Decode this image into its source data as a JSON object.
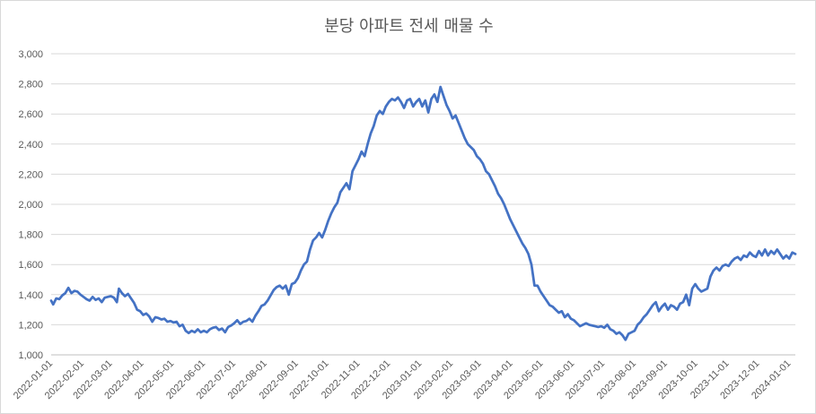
{
  "chart_data": {
    "type": "line",
    "title": "분당 아파트 전세 매물 수",
    "xlabel": "",
    "ylabel": "",
    "ylim": [
      1000,
      3000
    ],
    "y_ticks": [
      1000,
      1200,
      1400,
      1600,
      1800,
      2000,
      2200,
      2400,
      2600,
      2800,
      3000
    ],
    "y_tick_labels": [
      "1,000",
      "1,200",
      "1,400",
      "1,600",
      "1,800",
      "2,000",
      "2,200",
      "2,400",
      "2,600",
      "2,800",
      "3,000"
    ],
    "x_range": [
      "2022-01-01",
      "2024-01-07"
    ],
    "x_tick_labels": [
      "2022-01-01",
      "2022-02-01",
      "2022-03-01",
      "2022-04-01",
      "2022-05-01",
      "2022-06-01",
      "2022-07-01",
      "2022-08-01",
      "2022-09-01",
      "2022-10-01",
      "2022-11-01",
      "2022-12-01",
      "2023-01-01",
      "2023-02-01",
      "2023-03-01",
      "2023-04-01",
      "2023-05-01",
      "2023-06-01",
      "2023-07-01",
      "2023-08-01",
      "2023-09-01",
      "2023-10-01",
      "2023-11-01",
      "2023-12-01",
      "2024-01-01"
    ],
    "grid": true,
    "legend": "none",
    "series": [
      {
        "color": "#4472c4",
        "points": [
          [
            "2022-01-01",
            1360
          ],
          [
            "2022-01-03",
            1335
          ],
          [
            "2022-01-06",
            1375
          ],
          [
            "2022-01-09",
            1370
          ],
          [
            "2022-01-12",
            1395
          ],
          [
            "2022-01-15",
            1410
          ],
          [
            "2022-01-18",
            1445
          ],
          [
            "2022-01-21",
            1410
          ],
          [
            "2022-01-24",
            1425
          ],
          [
            "2022-01-27",
            1420
          ],
          [
            "2022-01-30",
            1400
          ],
          [
            "2022-02-02",
            1385
          ],
          [
            "2022-02-05",
            1370
          ],
          [
            "2022-02-08",
            1360
          ],
          [
            "2022-02-11",
            1385
          ],
          [
            "2022-02-14",
            1365
          ],
          [
            "2022-02-17",
            1375
          ],
          [
            "2022-02-20",
            1350
          ],
          [
            "2022-02-23",
            1380
          ],
          [
            "2022-02-26",
            1385
          ],
          [
            "2022-03-01",
            1390
          ],
          [
            "2022-03-04",
            1380
          ],
          [
            "2022-03-07",
            1350
          ],
          [
            "2022-03-09",
            1440
          ],
          [
            "2022-03-12",
            1410
          ],
          [
            "2022-03-15",
            1390
          ],
          [
            "2022-03-18",
            1405
          ],
          [
            "2022-03-21",
            1375
          ],
          [
            "2022-03-24",
            1345
          ],
          [
            "2022-03-27",
            1300
          ],
          [
            "2022-03-30",
            1290
          ],
          [
            "2022-04-02",
            1265
          ],
          [
            "2022-04-05",
            1275
          ],
          [
            "2022-04-08",
            1255
          ],
          [
            "2022-04-11",
            1220
          ],
          [
            "2022-04-14",
            1250
          ],
          [
            "2022-04-17",
            1245
          ],
          [
            "2022-04-20",
            1235
          ],
          [
            "2022-04-23",
            1240
          ],
          [
            "2022-04-26",
            1220
          ],
          [
            "2022-04-29",
            1225
          ],
          [
            "2022-05-02",
            1215
          ],
          [
            "2022-05-05",
            1220
          ],
          [
            "2022-05-08",
            1190
          ],
          [
            "2022-05-11",
            1200
          ],
          [
            "2022-05-14",
            1160
          ],
          [
            "2022-05-17",
            1145
          ],
          [
            "2022-05-20",
            1160
          ],
          [
            "2022-05-23",
            1150
          ],
          [
            "2022-05-26",
            1170
          ],
          [
            "2022-05-29",
            1150
          ],
          [
            "2022-06-01",
            1160
          ],
          [
            "2022-06-04",
            1150
          ],
          [
            "2022-06-07",
            1170
          ],
          [
            "2022-06-10",
            1180
          ],
          [
            "2022-06-13",
            1185
          ],
          [
            "2022-06-16",
            1165
          ],
          [
            "2022-06-19",
            1175
          ],
          [
            "2022-06-22",
            1150
          ],
          [
            "2022-06-25",
            1185
          ],
          [
            "2022-06-28",
            1195
          ],
          [
            "2022-07-01",
            1210
          ],
          [
            "2022-07-04",
            1230
          ],
          [
            "2022-07-07",
            1205
          ],
          [
            "2022-07-10",
            1220
          ],
          [
            "2022-07-13",
            1225
          ],
          [
            "2022-07-16",
            1240
          ],
          [
            "2022-07-19",
            1220
          ],
          [
            "2022-07-22",
            1260
          ],
          [
            "2022-07-25",
            1290
          ],
          [
            "2022-07-28",
            1325
          ],
          [
            "2022-07-31",
            1335
          ],
          [
            "2022-08-03",
            1360
          ],
          [
            "2022-08-06",
            1395
          ],
          [
            "2022-08-09",
            1430
          ],
          [
            "2022-08-12",
            1450
          ],
          [
            "2022-08-15",
            1460
          ],
          [
            "2022-08-18",
            1440
          ],
          [
            "2022-08-21",
            1460
          ],
          [
            "2022-08-24",
            1400
          ],
          [
            "2022-08-27",
            1470
          ],
          [
            "2022-08-30",
            1480
          ],
          [
            "2022-09-02",
            1510
          ],
          [
            "2022-09-05",
            1560
          ],
          [
            "2022-09-08",
            1600
          ],
          [
            "2022-09-11",
            1620
          ],
          [
            "2022-09-14",
            1700
          ],
          [
            "2022-09-17",
            1760
          ],
          [
            "2022-09-20",
            1780
          ],
          [
            "2022-09-23",
            1810
          ],
          [
            "2022-09-26",
            1780
          ],
          [
            "2022-09-29",
            1830
          ],
          [
            "2022-10-02",
            1890
          ],
          [
            "2022-10-05",
            1940
          ],
          [
            "2022-10-08",
            1980
          ],
          [
            "2022-10-11",
            2010
          ],
          [
            "2022-10-14",
            2080
          ],
          [
            "2022-10-17",
            2110
          ],
          [
            "2022-10-20",
            2140
          ],
          [
            "2022-10-23",
            2100
          ],
          [
            "2022-10-26",
            2220
          ],
          [
            "2022-10-29",
            2260
          ],
          [
            "2022-11-01",
            2300
          ],
          [
            "2022-11-04",
            2350
          ],
          [
            "2022-11-07",
            2320
          ],
          [
            "2022-11-10",
            2400
          ],
          [
            "2022-11-13",
            2470
          ],
          [
            "2022-11-16",
            2520
          ],
          [
            "2022-11-19",
            2590
          ],
          [
            "2022-11-22",
            2620
          ],
          [
            "2022-11-25",
            2600
          ],
          [
            "2022-11-28",
            2650
          ],
          [
            "2022-12-01",
            2680
          ],
          [
            "2022-12-04",
            2700
          ],
          [
            "2022-12-07",
            2690
          ],
          [
            "2022-12-10",
            2710
          ],
          [
            "2022-12-13",
            2680
          ],
          [
            "2022-12-16",
            2640
          ],
          [
            "2022-12-19",
            2690
          ],
          [
            "2022-12-22",
            2700
          ],
          [
            "2022-12-25",
            2650
          ],
          [
            "2022-12-28",
            2680
          ],
          [
            "2022-12-31",
            2700
          ],
          [
            "2023-01-03",
            2650
          ],
          [
            "2023-01-06",
            2690
          ],
          [
            "2023-01-09",
            2610
          ],
          [
            "2023-01-12",
            2700
          ],
          [
            "2023-01-15",
            2730
          ],
          [
            "2023-01-18",
            2680
          ],
          [
            "2023-01-21",
            2780
          ],
          [
            "2023-01-24",
            2720
          ],
          [
            "2023-01-27",
            2660
          ],
          [
            "2023-01-30",
            2620
          ],
          [
            "2023-02-02",
            2570
          ],
          [
            "2023-02-05",
            2590
          ],
          [
            "2023-02-08",
            2540
          ],
          [
            "2023-02-11",
            2490
          ],
          [
            "2023-02-14",
            2440
          ],
          [
            "2023-02-17",
            2400
          ],
          [
            "2023-02-20",
            2380
          ],
          [
            "2023-02-23",
            2360
          ],
          [
            "2023-02-26",
            2320
          ],
          [
            "2023-03-01",
            2300
          ],
          [
            "2023-03-04",
            2270
          ],
          [
            "2023-03-07",
            2220
          ],
          [
            "2023-03-10",
            2200
          ],
          [
            "2023-03-13",
            2160
          ],
          [
            "2023-03-16",
            2120
          ],
          [
            "2023-03-19",
            2070
          ],
          [
            "2023-03-22",
            2040
          ],
          [
            "2023-03-25",
            2000
          ],
          [
            "2023-03-28",
            1950
          ],
          [
            "2023-03-31",
            1900
          ],
          [
            "2023-04-03",
            1860
          ],
          [
            "2023-04-06",
            1820
          ],
          [
            "2023-04-09",
            1780
          ],
          [
            "2023-04-12",
            1740
          ],
          [
            "2023-04-15",
            1710
          ],
          [
            "2023-04-18",
            1670
          ],
          [
            "2023-04-21",
            1600
          ],
          [
            "2023-04-24",
            1460
          ],
          [
            "2023-04-27",
            1460
          ],
          [
            "2023-04-30",
            1420
          ],
          [
            "2023-05-03",
            1390
          ],
          [
            "2023-05-06",
            1360
          ],
          [
            "2023-05-09",
            1330
          ],
          [
            "2023-05-12",
            1320
          ],
          [
            "2023-05-15",
            1300
          ],
          [
            "2023-05-18",
            1280
          ],
          [
            "2023-05-21",
            1290
          ],
          [
            "2023-05-24",
            1250
          ],
          [
            "2023-05-27",
            1270
          ],
          [
            "2023-05-30",
            1240
          ],
          [
            "2023-06-02",
            1230
          ],
          [
            "2023-06-05",
            1210
          ],
          [
            "2023-06-08",
            1190
          ],
          [
            "2023-06-11",
            1200
          ],
          [
            "2023-06-14",
            1210
          ],
          [
            "2023-06-17",
            1200
          ],
          [
            "2023-06-20",
            1195
          ],
          [
            "2023-06-23",
            1190
          ],
          [
            "2023-06-26",
            1185
          ],
          [
            "2023-06-29",
            1190
          ],
          [
            "2023-07-02",
            1180
          ],
          [
            "2023-07-05",
            1200
          ],
          [
            "2023-07-08",
            1170
          ],
          [
            "2023-07-11",
            1160
          ],
          [
            "2023-07-14",
            1140
          ],
          [
            "2023-07-17",
            1150
          ],
          [
            "2023-07-20",
            1130
          ],
          [
            "2023-07-23",
            1100
          ],
          [
            "2023-07-26",
            1140
          ],
          [
            "2023-07-29",
            1150
          ],
          [
            "2023-08-01",
            1160
          ],
          [
            "2023-08-04",
            1200
          ],
          [
            "2023-08-07",
            1220
          ],
          [
            "2023-08-10",
            1250
          ],
          [
            "2023-08-13",
            1270
          ],
          [
            "2023-08-16",
            1300
          ],
          [
            "2023-08-19",
            1330
          ],
          [
            "2023-08-22",
            1350
          ],
          [
            "2023-08-25",
            1290
          ],
          [
            "2023-08-28",
            1320
          ],
          [
            "2023-08-31",
            1340
          ],
          [
            "2023-09-03",
            1300
          ],
          [
            "2023-09-06",
            1330
          ],
          [
            "2023-09-09",
            1320
          ],
          [
            "2023-09-12",
            1300
          ],
          [
            "2023-09-15",
            1340
          ],
          [
            "2023-09-18",
            1350
          ],
          [
            "2023-09-21",
            1400
          ],
          [
            "2023-09-24",
            1330
          ],
          [
            "2023-09-27",
            1440
          ],
          [
            "2023-09-30",
            1470
          ],
          [
            "2023-10-03",
            1440
          ],
          [
            "2023-10-06",
            1420
          ],
          [
            "2023-10-09",
            1430
          ],
          [
            "2023-10-12",
            1440
          ],
          [
            "2023-10-15",
            1520
          ],
          [
            "2023-10-18",
            1560
          ],
          [
            "2023-10-21",
            1580
          ],
          [
            "2023-10-24",
            1560
          ],
          [
            "2023-10-27",
            1590
          ],
          [
            "2023-10-30",
            1600
          ],
          [
            "2023-11-02",
            1590
          ],
          [
            "2023-11-05",
            1620
          ],
          [
            "2023-11-08",
            1640
          ],
          [
            "2023-11-11",
            1650
          ],
          [
            "2023-11-14",
            1630
          ],
          [
            "2023-11-17",
            1660
          ],
          [
            "2023-11-20",
            1650
          ],
          [
            "2023-11-23",
            1680
          ],
          [
            "2023-11-26",
            1660
          ],
          [
            "2023-11-29",
            1650
          ],
          [
            "2023-12-02",
            1690
          ],
          [
            "2023-12-05",
            1660
          ],
          [
            "2023-12-08",
            1700
          ],
          [
            "2023-12-11",
            1660
          ],
          [
            "2023-12-14",
            1690
          ],
          [
            "2023-12-17",
            1670
          ],
          [
            "2023-12-20",
            1700
          ],
          [
            "2023-12-23",
            1670
          ],
          [
            "2023-12-26",
            1640
          ],
          [
            "2023-12-29",
            1660
          ],
          [
            "2024-01-01",
            1640
          ],
          [
            "2024-01-04",
            1680
          ],
          [
            "2024-01-07",
            1670
          ]
        ]
      }
    ]
  }
}
